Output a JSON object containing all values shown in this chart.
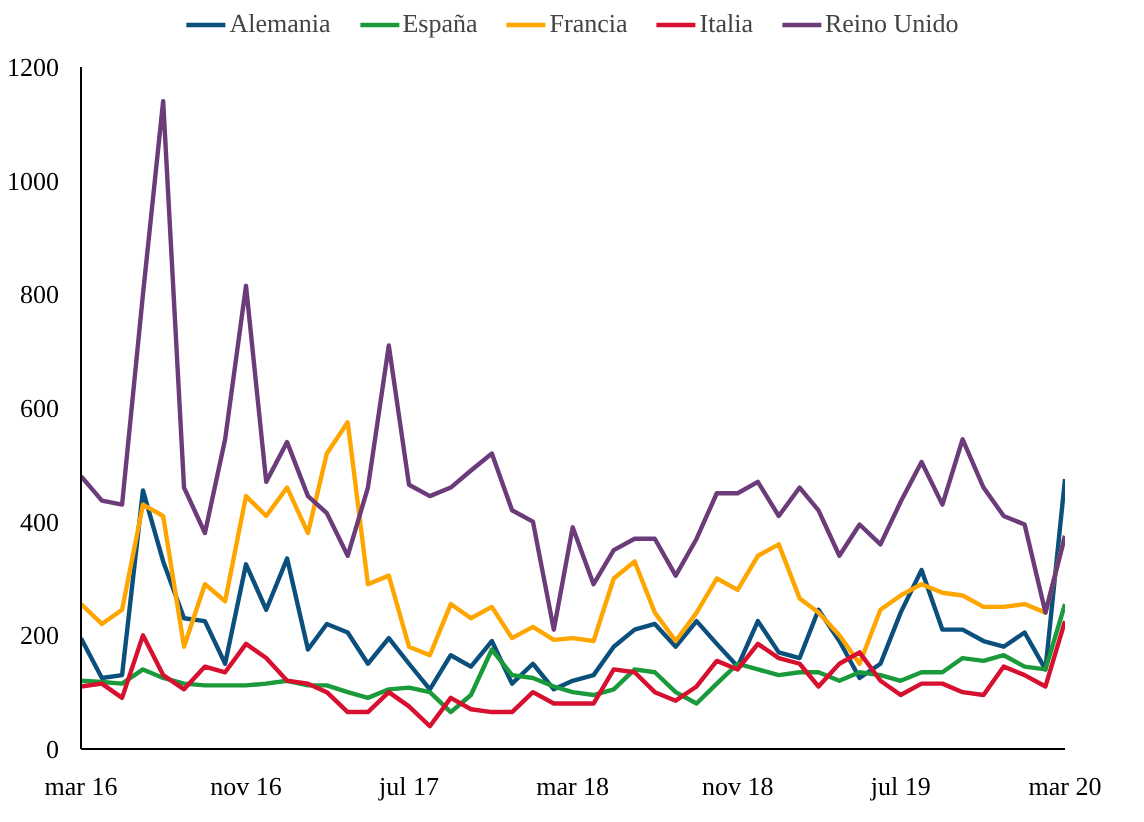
{
  "chart_data": {
    "type": "line",
    "x": [
      "2016-03",
      "2016-04",
      "2016-05",
      "2016-06",
      "2016-07",
      "2016-08",
      "2016-09",
      "2016-10",
      "2016-11",
      "2016-12",
      "2017-01",
      "2017-02",
      "2017-03",
      "2017-04",
      "2017-05",
      "2017-06",
      "2017-07",
      "2017-08",
      "2017-09",
      "2017-10",
      "2017-11",
      "2017-12",
      "2018-01",
      "2018-02",
      "2018-03",
      "2018-04",
      "2018-05",
      "2018-06",
      "2018-07",
      "2018-08",
      "2018-09",
      "2018-10",
      "2018-11",
      "2018-12",
      "2019-01",
      "2019-02",
      "2019-03",
      "2019-04",
      "2019-05",
      "2019-06",
      "2019-07",
      "2019-08",
      "2019-09",
      "2019-10",
      "2019-11",
      "2019-12",
      "2020-01",
      "2020-02",
      "2020-03"
    ],
    "series": [
      {
        "name": "Alemania",
        "color": "#0b4f7c",
        "values": [
          195,
          125,
          130,
          455,
          330,
          230,
          225,
          150,
          325,
          245,
          335,
          175,
          220,
          205,
          150,
          195,
          150,
          105,
          165,
          145,
          190,
          115,
          150,
          105,
          120,
          130,
          180,
          210,
          220,
          180,
          225,
          185,
          145,
          225,
          170,
          160,
          245,
          190,
          125,
          150,
          240,
          315,
          210,
          210,
          190,
          180,
          205,
          140,
          475
        ]
      },
      {
        "name": "España",
        "color": "#1a9a3a",
        "values": [
          120,
          118,
          115,
          140,
          125,
          115,
          112,
          112,
          112,
          115,
          120,
          112,
          112,
          100,
          90,
          105,
          108,
          100,
          65,
          95,
          175,
          130,
          125,
          110,
          100,
          95,
          105,
          140,
          135,
          100,
          80,
          115,
          150,
          140,
          130,
          135,
          135,
          120,
          135,
          130,
          120,
          135,
          135,
          160,
          155,
          165,
          145,
          140,
          255
        ]
      },
      {
        "name": "Francia",
        "color": "#ffa500",
        "values": [
          255,
          220,
          245,
          430,
          410,
          180,
          290,
          260,
          445,
          410,
          460,
          380,
          520,
          575,
          290,
          305,
          180,
          165,
          255,
          230,
          250,
          195,
          215,
          192,
          195,
          190,
          300,
          330,
          240,
          190,
          240,
          300,
          280,
          340,
          360,
          265,
          240,
          200,
          150,
          245,
          270,
          290,
          275,
          270,
          250,
          250,
          255,
          240,
          375
        ]
      },
      {
        "name": "Italia",
        "color": "#d7102f",
        "values": [
          110,
          115,
          90,
          200,
          130,
          105,
          145,
          135,
          185,
          160,
          120,
          115,
          100,
          65,
          65,
          100,
          75,
          40,
          90,
          70,
          65,
          65,
          100,
          80,
          80,
          80,
          140,
          135,
          100,
          85,
          110,
          155,
          140,
          185,
          160,
          150,
          110,
          150,
          170,
          120,
          95,
          115,
          115,
          100,
          95,
          145,
          130,
          110,
          225
        ]
      },
      {
        "name": "Reino Unido",
        "color": "#6b3b7a",
        "values": [
          480,
          437,
          430,
          800,
          1140,
          460,
          380,
          545,
          815,
          470,
          540,
          445,
          415,
          340,
          460,
          710,
          465,
          445,
          460,
          490,
          520,
          420,
          400,
          210,
          390,
          290,
          350,
          370,
          370,
          305,
          370,
          450,
          450,
          470,
          410,
          460,
          420,
          340,
          395,
          360,
          435,
          505,
          430,
          545,
          460,
          410,
          395,
          240,
          375
        ]
      }
    ],
    "xlim": [
      "2016-03",
      "2020-03"
    ],
    "xticks": [
      {
        "value": "2016-03",
        "label": "mar 16"
      },
      {
        "value": "2016-11",
        "label": "nov 16"
      },
      {
        "value": "2017-07",
        "label": "jul 17"
      },
      {
        "value": "2018-03",
        "label": "mar 18"
      },
      {
        "value": "2018-11",
        "label": "nov 18"
      },
      {
        "value": "2019-07",
        "label": "jul 19"
      },
      {
        "value": "2020-03",
        "label": "mar 20"
      }
    ],
    "ylim": [
      0,
      1200
    ],
    "yticks": [
      0,
      200,
      400,
      600,
      800,
      1000,
      1200
    ],
    "grid": false,
    "legend": "top",
    "marker": "none",
    "line_style": "solid"
  }
}
